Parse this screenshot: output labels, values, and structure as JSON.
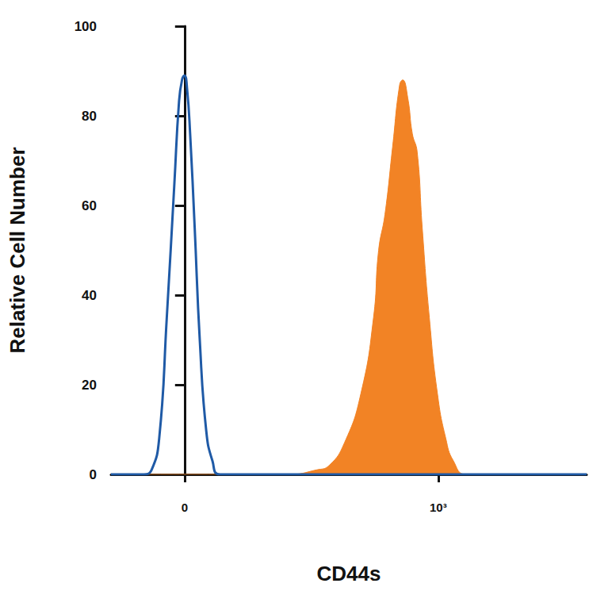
{
  "chart_data": {
    "type": "line",
    "xlabel": "CD44s",
    "ylabel": "Relative Cell Number",
    "xlim": [
      -290,
      1585
    ],
    "xticks": [
      {
        "value": 0,
        "label": "0"
      },
      {
        "value": 1000,
        "label": "10³"
      }
    ],
    "ylim": [
      0,
      100
    ],
    "yticks": [
      0,
      20,
      40,
      60,
      80,
      100
    ],
    "grid": false,
    "series": [
      {
        "type": "line",
        "color": "#1f5aa6",
        "x": [
          -290,
          -160,
          -130,
          -100,
          -70,
          -40,
          -22,
          -10,
          0,
          10,
          22,
          40,
          60,
          85,
          110,
          140,
          1585
        ],
        "values": [
          0,
          0,
          1,
          8,
          35,
          65,
          83,
          88,
          89,
          86,
          76,
          55,
          30,
          10,
          3,
          0,
          0
        ]
      },
      {
        "type": "area",
        "color": "#f28325",
        "x": [
          -290,
          410,
          520,
          570,
          630,
          695,
          745,
          765,
          790,
          820,
          848,
          860,
          880,
          898,
          917,
          937,
          965,
          997,
          1030,
          1060,
          1110,
          1585
        ],
        "values": [
          0,
          0,
          1,
          2,
          7,
          18,
          35,
          50,
          58,
          73,
          87,
          88,
          84,
          76,
          72,
          55,
          35,
          18,
          8,
          3,
          0,
          0
        ]
      }
    ]
  }
}
